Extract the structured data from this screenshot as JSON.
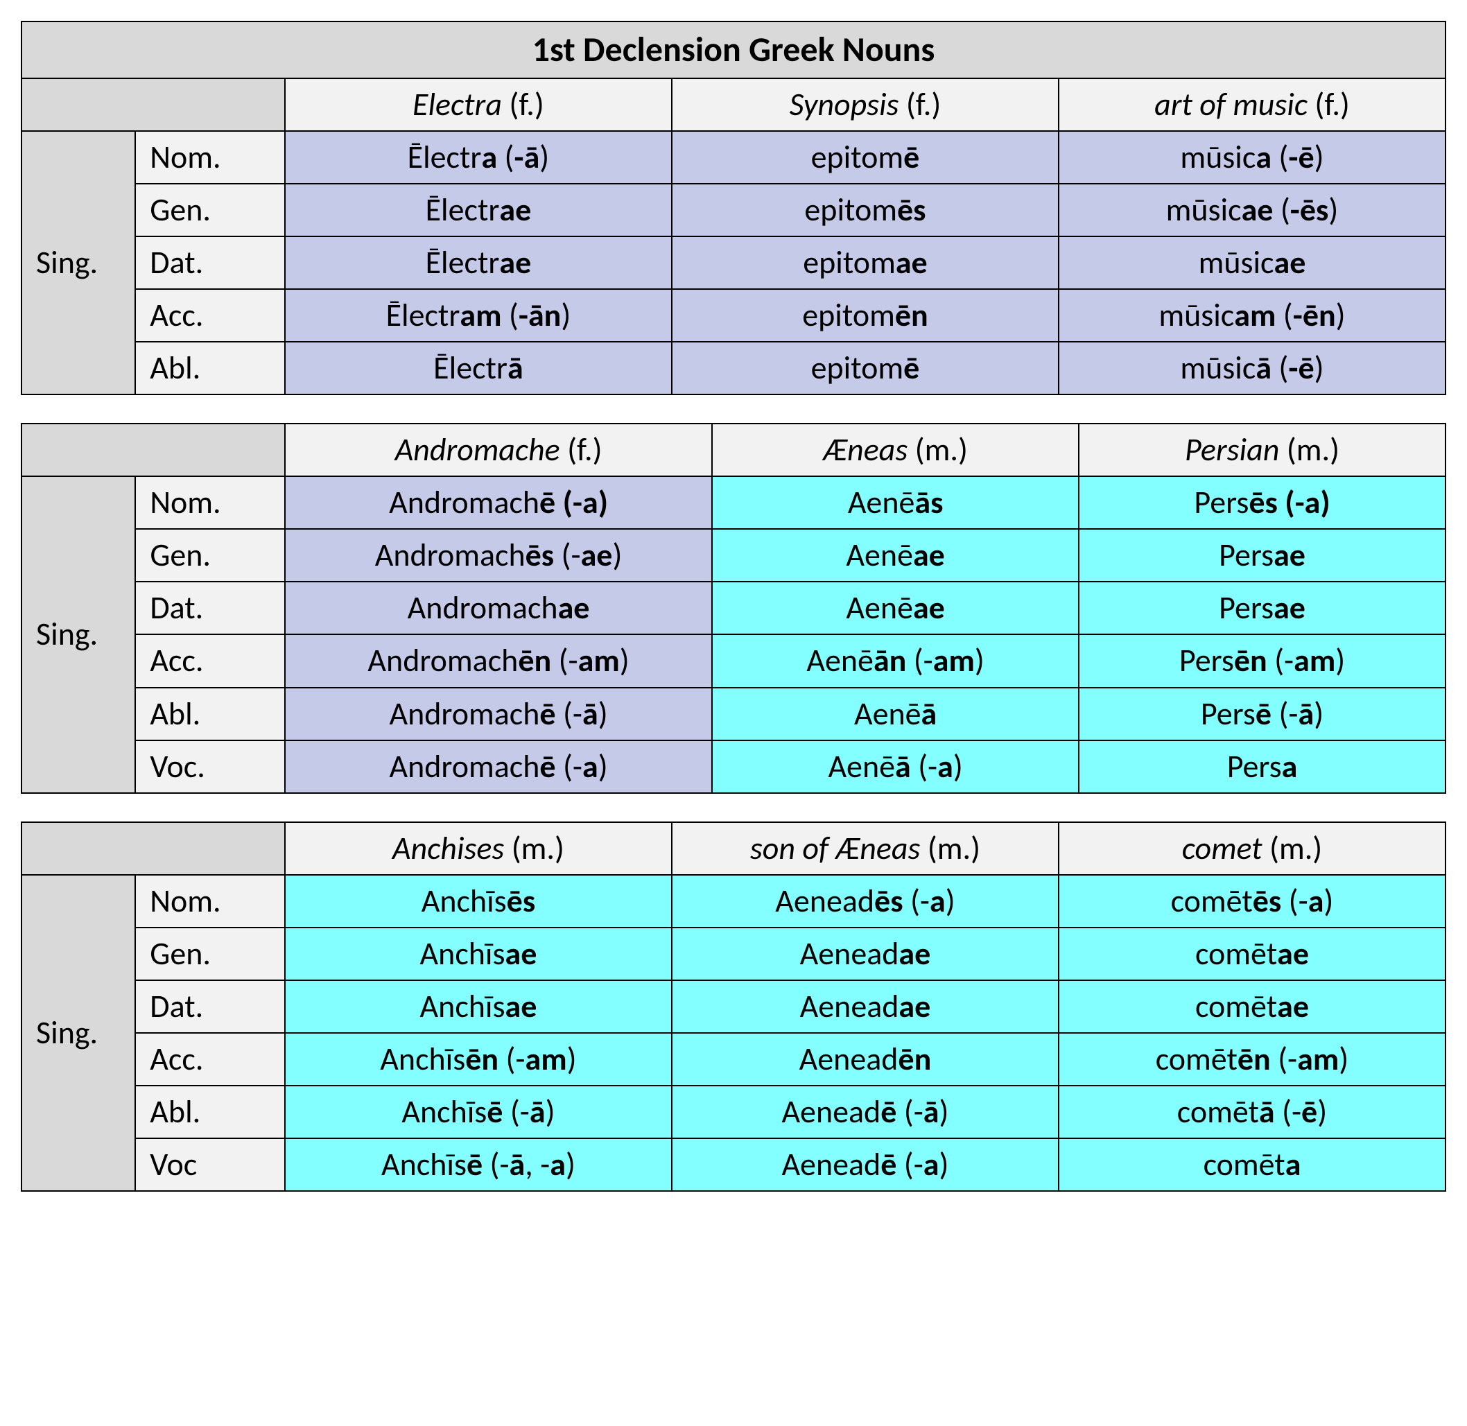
{
  "colors": {
    "title_bg": "#d9d9d9",
    "header_bg": "#f2f2f2",
    "feminine_bg": "#c5cae9",
    "masculine_bg": "#84ffff",
    "border": "#000000",
    "text": "#000000"
  },
  "typography": {
    "font_family": "Calibri",
    "title_size_pt": 38,
    "cell_size_pt": 35
  },
  "title": "1st Declension Greek Nouns",
  "tables": [
    {
      "number_label": "Sing.",
      "columns": [
        {
          "name": "Electra",
          "gender": "(f.)",
          "color": "fem"
        },
        {
          "name": "Synopsis",
          "gender": "(f.)",
          "color": "fem"
        },
        {
          "name": "art of music",
          "gender": "(f.)",
          "color": "fem"
        }
      ],
      "rows": [
        {
          "case": "Nom.",
          "cells": [
            "Ēlectr<b>a </b>(<b>-ā</b>)",
            "epitom<b>ē</b>",
            "mūsic<b>a </b>(<b>-ē</b>)"
          ]
        },
        {
          "case": "Gen.",
          "cells": [
            "Ēlectr<b>ae</b>",
            "epitom<b>ēs</b>",
            "mūsic<b>ae </b>(<b>-ēs</b>)"
          ]
        },
        {
          "case": "Dat.",
          "cells": [
            "Ēlectr<b>ae</b>",
            "epitom<b>ae</b>",
            "mūsic<b>ae</b>"
          ]
        },
        {
          "case": "Acc.",
          "cells": [
            "Ēlectr<b>am </b>(<b>-ān</b>)",
            "epitom<b>ēn</b>",
            "mūsic<b>am </b>(<b>-ēn</b>)"
          ]
        },
        {
          "case": "Abl.",
          "cells": [
            "Ēlectr<b>ā</b>",
            "epitom<b>ē</b>",
            "mūsic<b>ā </b>(<b>-ē</b>)"
          ]
        }
      ]
    },
    {
      "number_label": "Sing.",
      "columns": [
        {
          "name": "Andromache",
          "gender": "(f.)",
          "color": "fem"
        },
        {
          "name": "Æneas",
          "gender": "(m.)",
          "color": "masc"
        },
        {
          "name": "Persian",
          "gender": "(m.)",
          "color": "masc"
        }
      ],
      "rows": [
        {
          "case": "Nom.",
          "cells": [
            "Andromach<b>ē (-a)</b>",
            "Aenē<b>ās</b>",
            "Pers<b>ēs (-a)</b>"
          ]
        },
        {
          "case": "Gen.",
          "cells": [
            "Andromach<b>ēs </b>(-<b>ae</b>)",
            "Aenē<b>ae</b>",
            "Pers<b>ae</b>"
          ]
        },
        {
          "case": "Dat.",
          "cells": [
            "Andromach<b>ae</b>",
            "Aenē<b>ae</b>",
            "Pers<b>ae</b>"
          ]
        },
        {
          "case": "Acc.",
          "cells": [
            "Andromach<b>ēn </b>(-<b>am</b>)",
            "Aenē<b>ān </b>(-<b>am</b>)",
            "Pers<b>ēn </b>(-<b>am</b>)"
          ]
        },
        {
          "case": "Abl.",
          "cells": [
            "Andromach<b>ē </b>(-<b>ā</b>)",
            "Aenē<b>ā</b>",
            "Pers<b>ē </b>(-<b>ā</b>)"
          ]
        },
        {
          "case": "Voc.",
          "cells": [
            "Andromach<b>ē </b>(-<b>a</b>)",
            "Aenē<b>ā </b>(-<b>a</b>)",
            "Pers<b>a</b>"
          ]
        }
      ]
    },
    {
      "number_label": "Sing.",
      "columns": [
        {
          "name": "Anchises",
          "gender": "(m.)",
          "color": "masc"
        },
        {
          "name": "son of Æneas",
          "gender": "(m.)",
          "color": "masc"
        },
        {
          "name": "comet",
          "gender": "(m.)",
          "color": "masc"
        }
      ],
      "rows": [
        {
          "case": "Nom.",
          "cells": [
            "Anchīs<b>ēs</b>",
            "Aenead<b>ēs </b>(-<b>a</b>)",
            "comēt<b>ēs </b>(-<b>a</b>)"
          ]
        },
        {
          "case": "Gen.",
          "cells": [
            "Anchīs<b>ae</b>",
            "Aenead<b>ae</b>",
            "comēt<b>ae</b>"
          ]
        },
        {
          "case": "Dat.",
          "cells": [
            "Anchīs<b>ae</b>",
            "Aenead<b>ae</b>",
            "comēt<b>ae</b>"
          ]
        },
        {
          "case": "Acc.",
          "cells": [
            "Anchīs<b>ēn </b>(-<b>am</b>)",
            "Aenead<b>ēn</b>",
            "comēt<b>ēn </b>(-<b>am</b>)"
          ]
        },
        {
          "case": "Abl.",
          "cells": [
            "Anchīs<b>ē </b>(-<b>ā</b>)",
            "Aenead<b>ē </b>(-<b>ā</b>)",
            "comēt<b>ā </b>(-<b>ē</b>)"
          ]
        },
        {
          "case": "Voc",
          "cells": [
            "Anchīs<b>ē </b>(-<b>ā</b>, -<b>a</b>)",
            "Aenead<b>ē </b>(-<b>a</b>)",
            "comēt<b>a</b>"
          ]
        }
      ]
    }
  ]
}
